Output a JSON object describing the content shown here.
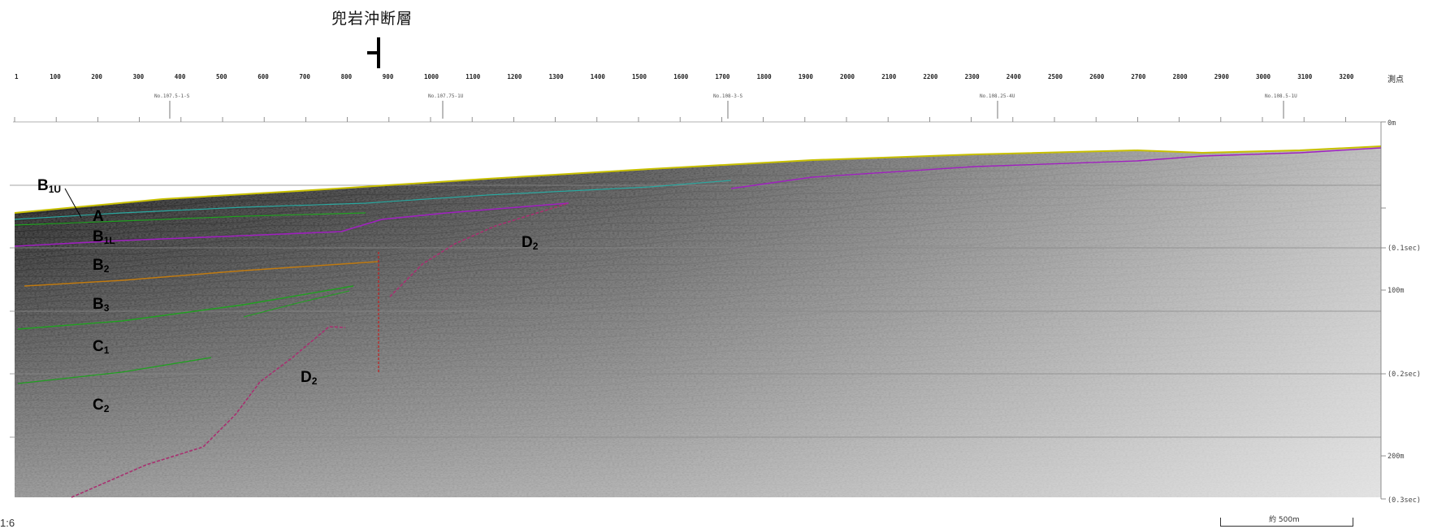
{
  "fault_name": "兜岩沖断層",
  "shotpoint_unit_label": "測点",
  "shotpoints": [
    "1",
    "100",
    "200",
    "300",
    "400",
    "500",
    "600",
    "700",
    "800",
    "900",
    "1000",
    "1100",
    "1200",
    "1300",
    "1400",
    "1500",
    "1600",
    "1700",
    "1800",
    "1900",
    "2000",
    "2100",
    "2200",
    "2300",
    "2400",
    "2500",
    "2600",
    "2700",
    "2800",
    "2900",
    "3000",
    "3100",
    "3200"
  ],
  "crossing_lines": [
    "No.107.5-1-S",
    "No.107.75-1U",
    "No.108-3-S",
    "No.108.25-4U",
    "No.108.5-1U"
  ],
  "depth_labels": [
    "0m",
    "(0.1sec)",
    "100m",
    "(0.2sec)",
    "200m",
    "(0.3sec)"
  ],
  "units": {
    "b1u": "B1U",
    "a": "A",
    "b1l": "B1L",
    "b2": "B2",
    "b3": "B3",
    "c1": "C1",
    "c2": "C2",
    "d2_upper": "D2",
    "d2_lower": "D2"
  },
  "footer_left": "1:6",
  "scale_bar_label": "約 500m",
  "colors": {
    "seafloor": "#c8c000",
    "b1u_top": "#a020c0",
    "a_top": "#2aa8a0",
    "b1l_base": "#a020c0",
    "b2_base": "#c07a10",
    "b3_base": "#20a020",
    "c1_base": "#20a020",
    "fault": "#a83070",
    "fault_red": "#c02020"
  }
}
